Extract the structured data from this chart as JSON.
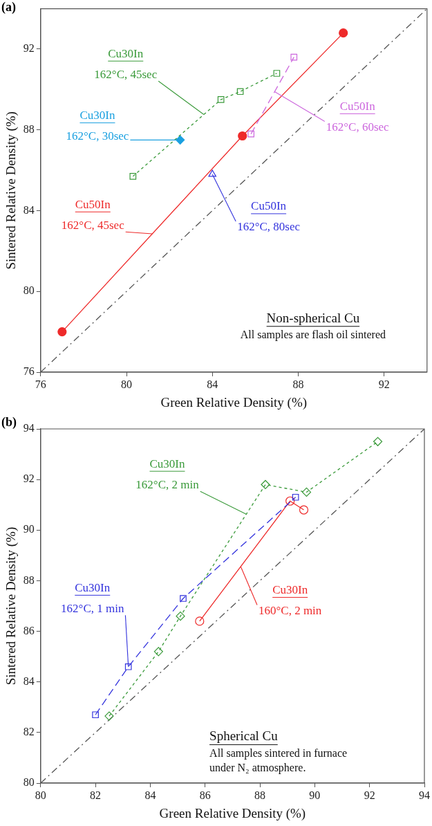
{
  "chart_data": [
    {
      "type": "line",
      "title": "(a)",
      "xlabel": "Green Relative Density (%)",
      "ylabel": "Sintered Relative Density (%)",
      "xlim": [
        76,
        94
      ],
      "ylim": [
        76,
        94
      ],
      "xticks": [
        76,
        80,
        84,
        88,
        92
      ],
      "yticks": [
        76,
        80,
        84,
        88,
        92
      ],
      "grid": false,
      "legend": false,
      "series": [
        {
          "name": "Cu30In",
          "color": "#3a9a3a",
          "marker": "square",
          "line_style": "dotted",
          "x": [
            80.3,
            84.4,
            85.3,
            87.0
          ],
          "values": [
            85.7,
            89.5,
            89.9,
            90.8
          ]
        },
        {
          "name": "Cu30In",
          "color": "#1aa0e0",
          "marker": "diamond",
          "line_style": "solid",
          "x": [
            82.5
          ],
          "values": [
            87.5
          ]
        },
        {
          "name": "Cu50In",
          "color": "#cc66dd",
          "marker": "square",
          "line_style": "dashed",
          "x": [
            85.8,
            87.8
          ],
          "values": [
            87.8,
            91.6
          ]
        },
        {
          "name": "Cu50In",
          "color": "#ee2a2a",
          "marker": "circle",
          "line_style": "solid",
          "x": [
            77.0,
            85.4,
            90.1
          ],
          "values": [
            78.0,
            87.7,
            92.8
          ]
        },
        {
          "name": "Cu50In",
          "color": "#3333dd",
          "marker": "triangle",
          "line_style": "solid",
          "x": [
            84.0
          ],
          "values": [
            85.8
          ]
        },
        {
          "color": "#555555",
          "marker": "none",
          "line_style": "dashdot",
          "x": [
            76,
            94
          ],
          "values": [
            76,
            94
          ]
        }
      ],
      "annotations": [
        {
          "text": "162°C, 45sec",
          "x": 83.6,
          "y": 88.76
        },
        {
          "text": "162°C, 30sec",
          "x": 82.5,
          "y": 87.5
        },
        {
          "text": "162°C, 60sec",
          "x": 86.9,
          "y": 89.89
        },
        {
          "text": "162°C, 45sec",
          "x": 81.2,
          "y": 82.85
        },
        {
          "text": "162°C, 80sec",
          "x": 84.0,
          "y": 85.8
        },
        "Non-spherical Cu",
        "All samples are flash oil sintered"
      ]
    },
    {
      "type": "line",
      "title": "(b)",
      "xlabel": "Green Relative Density (%)",
      "ylabel": "Sintered Relative Density (%)",
      "xlim": [
        80,
        94
      ],
      "ylim": [
        80,
        94
      ],
      "xticks": [
        80,
        82,
        84,
        86,
        88,
        90,
        92,
        94
      ],
      "yticks": [
        80,
        82,
        84,
        86,
        88,
        90,
        92,
        94
      ],
      "grid": false,
      "legend": false,
      "series": [
        {
          "name": "Cu30In",
          "color": "#3a9a3a",
          "marker": "diamond",
          "line_style": "dotted",
          "x": [
            82.5,
            84.3,
            85.1,
            88.2,
            89.7,
            92.3
          ],
          "values": [
            82.65,
            85.2,
            86.6,
            91.8,
            91.5,
            93.5
          ]
        },
        {
          "name": "Cu30In",
          "color": "#3333dd",
          "marker": "square",
          "line_style": "dashed",
          "x": [
            82.0,
            83.2,
            85.2,
            89.3
          ],
          "values": [
            82.7,
            84.6,
            87.3,
            91.3
          ]
        },
        {
          "name": "Cu30In",
          "color": "#ee2a2a",
          "marker": "circle",
          "line_style": "solid",
          "x": [
            85.8,
            89.1,
            89.6
          ],
          "values": [
            86.4,
            91.15,
            90.8
          ]
        },
        {
          "color": "#555555",
          "marker": "none",
          "line_style": "dashdot",
          "x": [
            80,
            94
          ],
          "values": [
            80,
            94
          ]
        }
      ],
      "annotations": [
        {
          "text": "162°C, 2 min",
          "x": 87.5,
          "y": 90.63
        },
        {
          "text": "162°C, 1 min",
          "x": 83.2,
          "y": 84.6
        },
        {
          "text": "160°C, 2 min",
          "x": 87.3,
          "y": 88.56
        },
        "Spherical Cu",
        "All samples sintered in furnace under N₂ atmosphere."
      ]
    }
  ]
}
